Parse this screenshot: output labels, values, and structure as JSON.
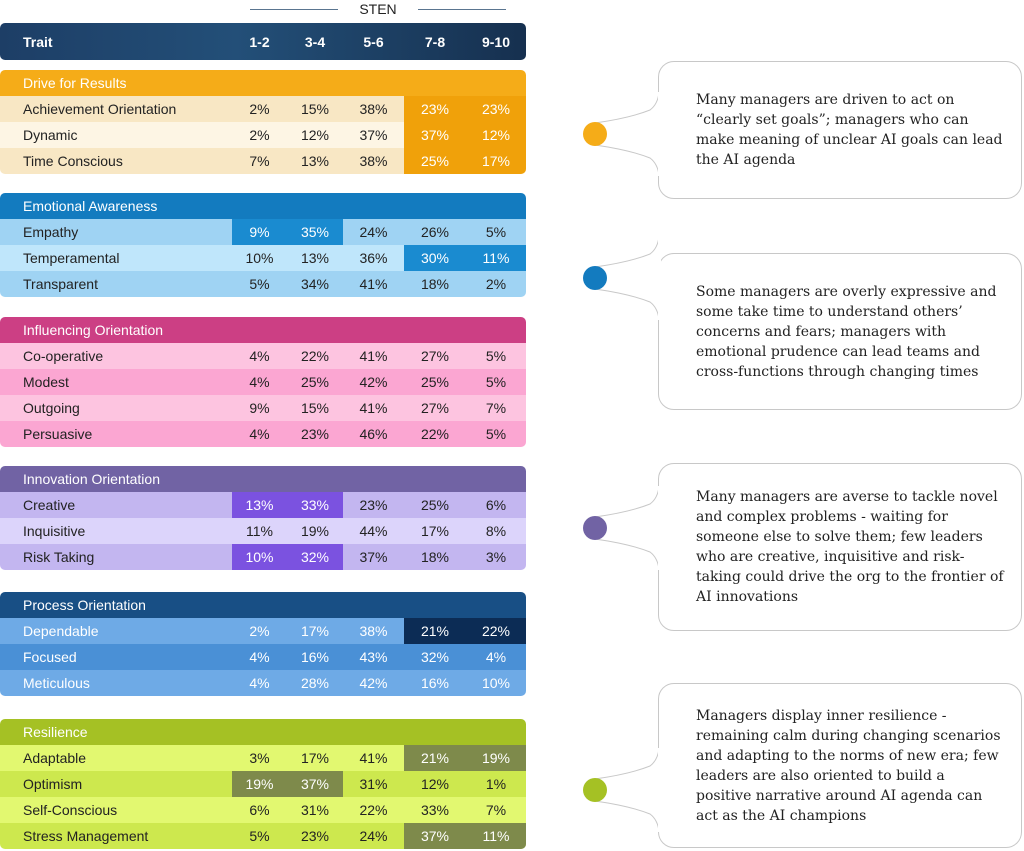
{
  "sten_label": "STEN",
  "header": {
    "trait": "Trait",
    "columns": [
      "1-2",
      "3-4",
      "5-6",
      "7-8",
      "9-10"
    ]
  },
  "chart_data": {
    "type": "table",
    "title": "STEN",
    "columns": [
      "Trait",
      "1-2",
      "3-4",
      "5-6",
      "7-8",
      "9-10"
    ],
    "sections": [
      {
        "name": "Drive for Results",
        "colors": {
          "header": "#f5ac18",
          "row": "#f8e7c4",
          "alt": "#fdf5e4",
          "highlight": "#f0a10a",
          "text": "#222222"
        },
        "rows": [
          {
            "trait": "Achievement Orientation",
            "values": [
              "2%",
              "15%",
              "38%",
              "23%",
              "23%"
            ],
            "highlight": [
              false,
              false,
              false,
              true,
              true
            ]
          },
          {
            "trait": "Dynamic",
            "values": [
              "2%",
              "12%",
              "37%",
              "37%",
              "12%"
            ],
            "highlight": [
              false,
              false,
              false,
              true,
              true
            ]
          },
          {
            "trait": "Time Conscious",
            "values": [
              "7%",
              "13%",
              "38%",
              "25%",
              "17%"
            ],
            "highlight": [
              false,
              false,
              false,
              true,
              true
            ]
          }
        ]
      },
      {
        "name": "Emotional Awareness",
        "colors": {
          "header": "#137bbf",
          "row": "#9fd3f3",
          "alt": "#bfe6fb",
          "highlight": "#1a8bd0",
          "text": "#222222"
        },
        "rows": [
          {
            "trait": "Empathy",
            "values": [
              "9%",
              "35%",
              "24%",
              "26%",
              "5%"
            ],
            "highlight": [
              true,
              true,
              false,
              false,
              false
            ]
          },
          {
            "trait": "Temperamental",
            "values": [
              "10%",
              "13%",
              "36%",
              "30%",
              "11%"
            ],
            "highlight": [
              false,
              false,
              false,
              true,
              true
            ]
          },
          {
            "trait": "Transparent",
            "values": [
              "5%",
              "34%",
              "41%",
              "18%",
              "2%"
            ],
            "highlight": [
              false,
              false,
              false,
              false,
              false
            ]
          }
        ]
      },
      {
        "name": "Influencing Orientation",
        "colors": {
          "header": "#cc3f84",
          "row": "#fdc4e0",
          "alt": "#fba6d2",
          "highlight": "#cc3f84",
          "text": "#222222"
        },
        "rows": [
          {
            "trait": "Co-operative",
            "values": [
              "4%",
              "22%",
              "41%",
              "27%",
              "5%"
            ],
            "highlight": [
              false,
              false,
              false,
              false,
              false
            ]
          },
          {
            "trait": "Modest",
            "values": [
              "4%",
              "25%",
              "42%",
              "25%",
              "5%"
            ],
            "highlight": [
              false,
              false,
              false,
              false,
              false
            ]
          },
          {
            "trait": "Outgoing",
            "values": [
              "9%",
              "15%",
              "41%",
              "27%",
              "7%"
            ],
            "highlight": [
              false,
              false,
              false,
              false,
              false
            ]
          },
          {
            "trait": "Persuasive",
            "values": [
              "4%",
              "23%",
              "46%",
              "22%",
              "5%"
            ],
            "highlight": [
              false,
              false,
              false,
              false,
              false
            ]
          }
        ]
      },
      {
        "name": "Innovation Orientation",
        "colors": {
          "header": "#7163a4",
          "row": "#c3b6f0",
          "alt": "#dcd4fb",
          "highlight": "#7b52e0",
          "text": "#222222"
        },
        "rows": [
          {
            "trait": "Creative",
            "values": [
              "13%",
              "33%",
              "23%",
              "25%",
              "6%"
            ],
            "highlight": [
              true,
              true,
              false,
              false,
              false
            ]
          },
          {
            "trait": "Inquisitive",
            "values": [
              "11%",
              "19%",
              "44%",
              "17%",
              "8%"
            ],
            "highlight": [
              false,
              false,
              false,
              false,
              false
            ]
          },
          {
            "trait": "Risk Taking",
            "values": [
              "10%",
              "32%",
              "37%",
              "18%",
              "3%"
            ],
            "highlight": [
              true,
              true,
              false,
              false,
              false
            ]
          }
        ]
      },
      {
        "name": "Process Orientation",
        "colors": {
          "header": "#184f85",
          "row": "#6eaae6",
          "alt": "#4a90d6",
          "highlight": "#0c2c55",
          "text": "#ffffff"
        },
        "rows": [
          {
            "trait": "Dependable",
            "values": [
              "2%",
              "17%",
              "38%",
              "21%",
              "22%"
            ],
            "highlight": [
              false,
              false,
              false,
              true,
              true
            ]
          },
          {
            "trait": "Focused",
            "values": [
              "4%",
              "16%",
              "43%",
              "32%",
              "4%"
            ],
            "highlight": [
              false,
              false,
              false,
              false,
              false
            ]
          },
          {
            "trait": "Meticulous",
            "values": [
              "4%",
              "28%",
              "42%",
              "16%",
              "10%"
            ],
            "highlight": [
              false,
              false,
              false,
              false,
              false
            ]
          }
        ]
      },
      {
        "name": "Resilience",
        "colors": {
          "header": "#a5c124",
          "row": "#e2f870",
          "alt": "#cde84e",
          "highlight": "#7e8a4b",
          "text": "#222222"
        },
        "rows": [
          {
            "trait": "Adaptable",
            "values": [
              "3%",
              "17%",
              "41%",
              "21%",
              "19%"
            ],
            "highlight": [
              false,
              false,
              false,
              true,
              true
            ]
          },
          {
            "trait": "Optimism",
            "values": [
              "19%",
              "37%",
              "31%",
              "12%",
              "1%"
            ],
            "highlight": [
              true,
              true,
              false,
              false,
              false
            ]
          },
          {
            "trait": "Self-Conscious",
            "values": [
              "6%",
              "31%",
              "22%",
              "33%",
              "7%"
            ],
            "highlight": [
              false,
              false,
              false,
              false,
              false
            ]
          },
          {
            "trait": "Stress Management",
            "values": [
              "5%",
              "23%",
              "24%",
              "37%",
              "11%"
            ],
            "highlight": [
              false,
              false,
              false,
              true,
              true
            ]
          }
        ]
      }
    ]
  },
  "callouts": [
    {
      "color": "#f5ac18",
      "text": "Many managers are driven to act on “clearly set goals”; managers who can make meaning of unclear AI goals can lead the AI agenda"
    },
    {
      "color": "#137bbf",
      "text": "Some managers are overly expressive and some take time to understand others’ concerns and fears; managers with emotional prudence can lead teams and cross-functions through changing times"
    },
    {
      "color": "#7163a4",
      "text": "Many managers are averse to tackle novel and complex problems - waiting for someone else to solve them; few leaders who are creative, inquisitive and risk-taking could drive the org to the frontier of AI innovations"
    },
    {
      "color": "#a5c124",
      "text": "Managers display inner resilience - remaining calm during changing scenarios and adapting to the norms of new era; few leaders are also oriented to build a positive narrative around AI agenda can act as the AI champions"
    }
  ]
}
